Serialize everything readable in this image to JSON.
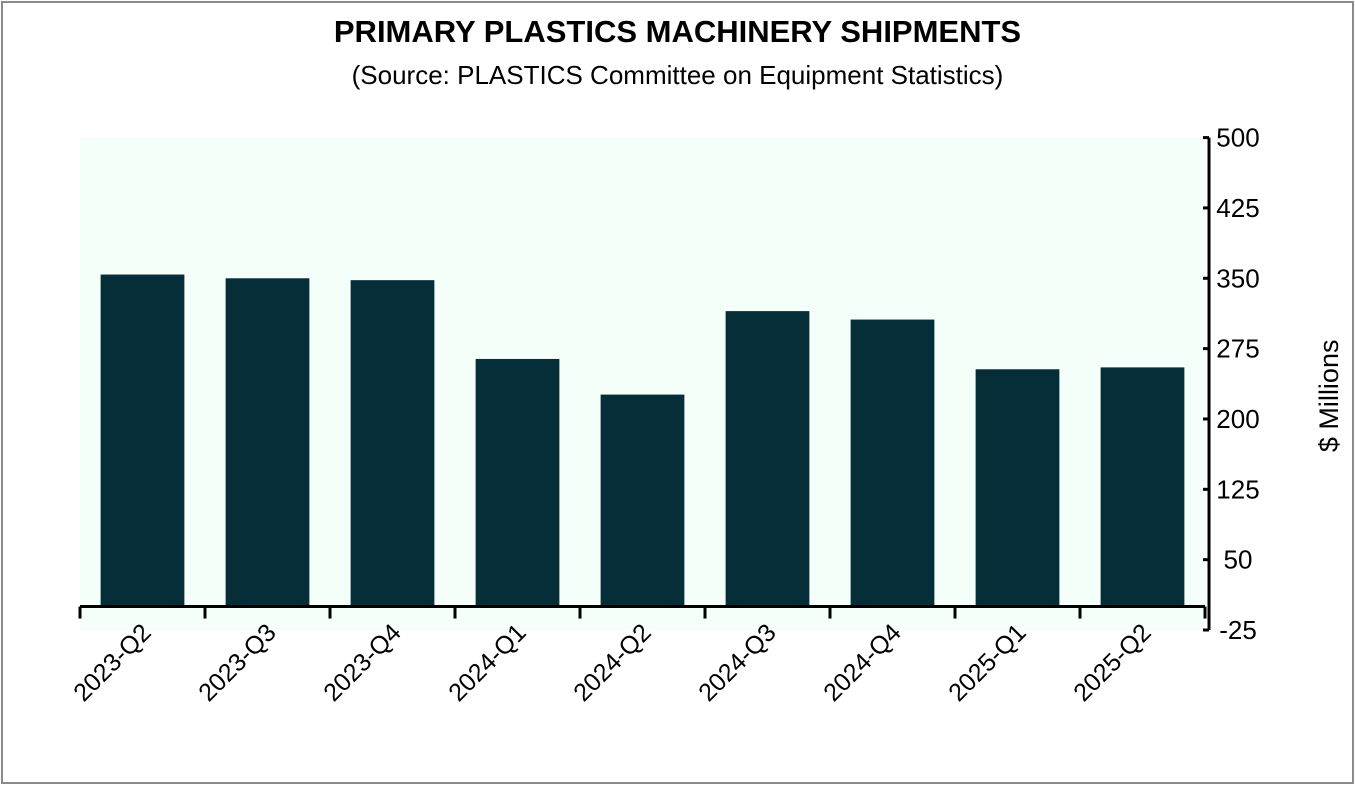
{
  "chart_data": {
    "type": "bar",
    "title": "PRIMARY PLASTICS MACHINERY SHIPMENTS",
    "subtitle": "(Source: PLASTICS Committee on Equipment Statistics)",
    "categories": [
      "2023-Q2",
      "2023-Q3",
      "2023-Q4",
      "2024-Q1",
      "2024-Q2",
      "2024-Q3",
      "2024-Q4",
      "2025-Q1",
      "2025-Q2"
    ],
    "values": [
      354,
      350,
      348,
      264,
      226,
      315,
      306,
      253,
      255
    ],
    "xlabel": "",
    "ylabel": "$ Millions",
    "ylim": [
      -25,
      500
    ],
    "yticks": [
      -25,
      50,
      125,
      200,
      275,
      350,
      425,
      500
    ],
    "y_axis_side": "right",
    "grid": false,
    "legend": "none",
    "colors": {
      "bar": "#062e38",
      "plot_background": "#f3fff8",
      "border": "#8a8a8a"
    }
  }
}
